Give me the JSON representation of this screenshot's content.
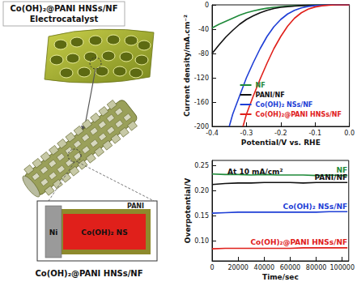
{
  "diagram": {
    "title": [
      "Co(OH)₂@PANI HNSs/NF",
      "Electrocatalyst"
    ],
    "layers": {
      "shell": "PANI",
      "substrate": "Ni",
      "core": "Co(OH)₂ NS"
    },
    "caption": "Co(OH)₂@PANI HNSs/NF"
  },
  "chart_data": [
    {
      "type": "line",
      "xlabel": "Potential/V vs. RHE",
      "ylabel": "Current density/mA.cm⁻²",
      "xlim": [
        -0.4,
        0
      ],
      "xticks": [
        -0.4,
        -0.3,
        -0.2,
        -0.1,
        {
          "value": 0,
          "label": "0.0"
        }
      ],
      "ylim": [
        -200,
        0
      ],
      "yticks": [
        -200,
        -160,
        -120,
        -80,
        -40,
        0
      ],
      "grid": false,
      "legend": "lower right",
      "series": [
        {
          "name": "NF",
          "color": "#1f8a3a",
          "x": [
            -0.4,
            -0.38,
            -0.36,
            -0.34,
            -0.32,
            -0.3,
            -0.28,
            -0.26,
            -0.24,
            -0.22,
            -0.2,
            -0.18,
            -0.16,
            -0.14,
            -0.12,
            -0.1,
            -0.08,
            -0.06,
            -0.04,
            -0.02,
            0
          ],
          "values": [
            -38,
            -32,
            -27,
            -22,
            -17,
            -13,
            -10,
            -7.5,
            -5.5,
            -4,
            -3,
            -2,
            -1.5,
            -1,
            -0.6,
            -0.4,
            -0.2,
            -0.1,
            0,
            0,
            0
          ]
        },
        {
          "name": "PANI/NF",
          "color": "#111111",
          "x": [
            -0.4,
            -0.38,
            -0.36,
            -0.34,
            -0.32,
            -0.3,
            -0.28,
            -0.26,
            -0.24,
            -0.22,
            -0.2,
            -0.18,
            -0.16,
            -0.14,
            -0.12,
            -0.1,
            -0.08,
            -0.06,
            -0.04,
            -0.02,
            0
          ],
          "values": [
            -80,
            -66,
            -53,
            -42,
            -32,
            -24,
            -18,
            -13,
            -9,
            -6,
            -4,
            -3,
            -2,
            -1.2,
            -0.8,
            -0.5,
            -0.3,
            -0.1,
            0,
            0,
            0
          ]
        },
        {
          "name": "Co(OH)₂ NSs/NF",
          "color": "#1f3fd6",
          "x": [
            -0.35,
            -0.34,
            -0.32,
            -0.3,
            -0.28,
            -0.26,
            -0.24,
            -0.22,
            -0.2,
            -0.18,
            -0.16,
            -0.14,
            -0.12,
            -0.1,
            -0.08,
            -0.06,
            -0.04,
            0
          ],
          "values": [
            -200,
            -180,
            -150,
            -120,
            -95,
            -72,
            -52,
            -36,
            -24,
            -15,
            -9,
            -5,
            -2.5,
            -1.2,
            -0.5,
            -0.2,
            0,
            0
          ]
        },
        {
          "name": "Co(OH)₂@PANI HNSs/NF",
          "color": "#e0201b",
          "x": [
            -0.31,
            -0.3,
            -0.28,
            -0.26,
            -0.24,
            -0.22,
            -0.2,
            -0.18,
            -0.16,
            -0.14,
            -0.12,
            -0.1,
            -0.08,
            -0.06,
            -0.04,
            0
          ],
          "values": [
            -200,
            -180,
            -150,
            -122,
            -96,
            -72,
            -52,
            -35,
            -22,
            -13,
            -7,
            -3.5,
            -1.5,
            -0.5,
            -0.1,
            0
          ]
        }
      ]
    },
    {
      "type": "line",
      "xlabel": "Time/sec",
      "ylabel": "Overpotential/V",
      "annotations": [
        "At 10 mA/cm²"
      ],
      "x": [
        0,
        10000,
        20000,
        30000,
        40000,
        50000,
        60000,
        70000,
        80000,
        90000,
        100000,
        104000
      ],
      "xlim": [
        0,
        105000
      ],
      "xticks": [
        0,
        20000,
        40000,
        60000,
        80000,
        100000
      ],
      "ylim": [
        0.06,
        0.26
      ],
      "yticks": [
        {
          "value": 0.1,
          "label": "0.10"
        },
        0.15,
        {
          "value": 0.2,
          "label": "0.20"
        },
        0.25
      ],
      "grid": false,
      "series": [
        {
          "name": "NF",
          "color": "#1f8a3a",
          "values": [
            0.233,
            0.232,
            0.232,
            0.231,
            0.232,
            0.231,
            0.231,
            0.231,
            0.23,
            0.231,
            0.23,
            0.23
          ]
        },
        {
          "name": "PANI/NF",
          "color": "#111111",
          "values": [
            0.212,
            0.214,
            0.215,
            0.215,
            0.216,
            0.216,
            0.216,
            0.215,
            0.216,
            0.216,
            0.216,
            0.216
          ]
        },
        {
          "name": "Co(OH)₂ NSs/NF",
          "color": "#1f3fd6",
          "values": [
            0.155,
            0.156,
            0.157,
            0.157,
            0.157,
            0.157,
            0.157,
            0.157,
            0.157,
            0.158,
            0.158,
            0.158
          ]
        },
        {
          "name": "Co(OH)₂@PANI HNSs/NF",
          "color": "#e0201b",
          "values": [
            0.084,
            0.085,
            0.085,
            0.085,
            0.085,
            0.085,
            0.085,
            0.086,
            0.086,
            0.086,
            0.086,
            0.086
          ]
        }
      ]
    }
  ]
}
